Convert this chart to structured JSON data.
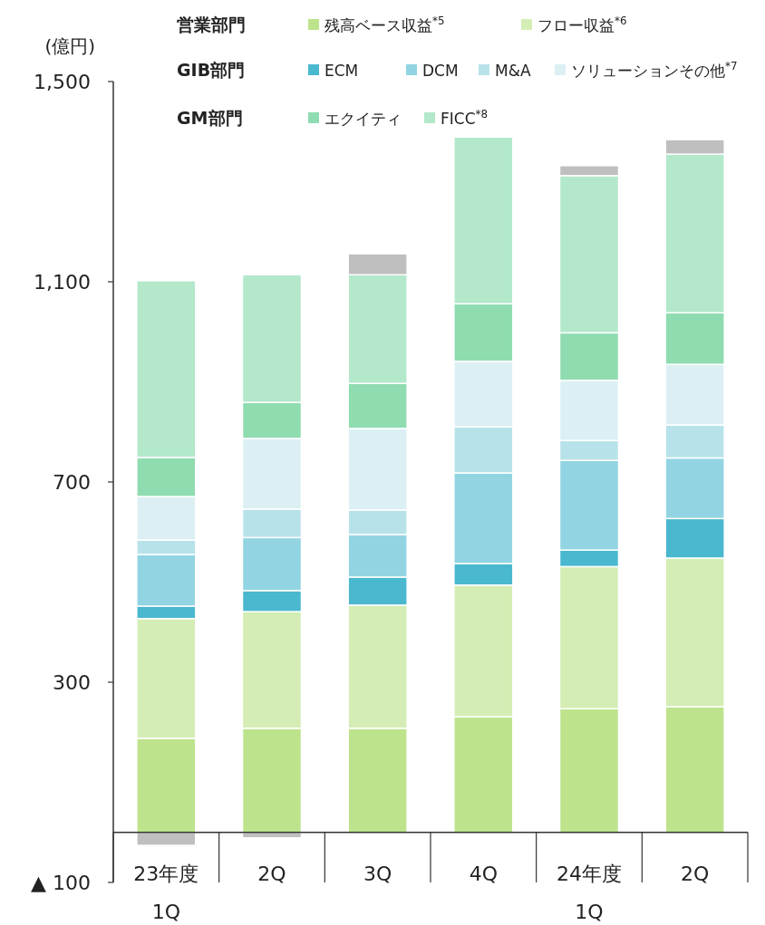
{
  "chart_data": {
    "type": "bar",
    "stacked": true,
    "ylabel": "(億円)",
    "categories": [
      "23年度 1Q",
      "2Q",
      "3Q",
      "4Q",
      "24年度 1Q",
      "2Q"
    ],
    "ylim": [
      -100,
      1500
    ],
    "yticks": [
      {
        "value": -100,
        "label": "▲ 100"
      },
      300,
      700,
      {
        "value": 1100,
        "label": "1,100"
      },
      {
        "value": 1500,
        "label": "1,500"
      }
    ],
    "series": [
      {
        "name": "残高ベース収益$^{*5}$",
        "color": "#bde48c",
        "values": [
          188,
          208,
          208,
          231,
          247,
          251
        ]
      },
      {
        "name": "フロー収益$^{*6}$",
        "color": "#d4edb5",
        "values": [
          239,
          233,
          246,
          263,
          284,
          297
        ]
      },
      {
        "name": "ECM",
        "color": "#4ab8cf",
        "values": [
          25,
          42,
          56,
          43,
          33,
          79
        ]
      },
      {
        "name": "DCM",
        "color": "#92d4e2",
        "values": [
          103,
          106,
          85,
          181,
          179,
          121
        ]
      },
      {
        "name": "M&A",
        "color": "#b8e2ea",
        "values": [
          29,
          57,
          49,
          92,
          40,
          66
        ]
      },
      {
        "name": "ソリューションその他$^{*7}$",
        "color": "#dcf0f4",
        "values": [
          87,
          141,
          163,
          131,
          120,
          121
        ]
      },
      {
        "name": "エクイティ",
        "color": "#8fdcb0",
        "values": [
          78,
          72,
          90,
          115,
          95,
          103
        ]
      },
      {
        "name": "FICC$^{*8}$",
        "color": "#b3e8cb",
        "values": [
          353,
          255,
          217,
          333,
          314,
          317
        ]
      },
      {
        "color": "#bfbfbf",
        "values": [
          -26,
          -11,
          42,
          null,
          20,
          29
        ]
      }
    ],
    "annotations": [
      "営業部門",
      "GIB部門",
      "GM部門"
    ],
    "legend": "top"
  }
}
